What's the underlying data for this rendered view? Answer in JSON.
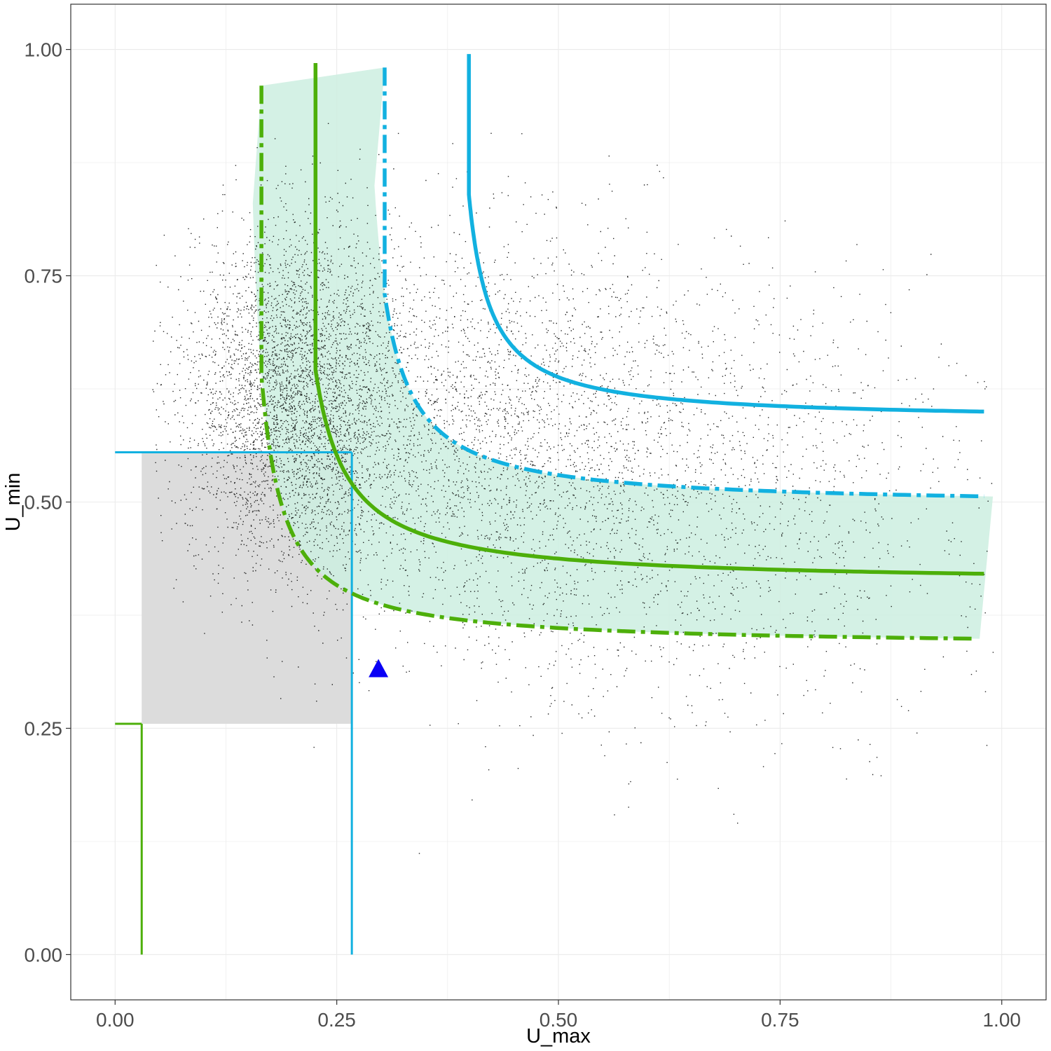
{
  "chart_data": {
    "type": "scatter",
    "title": "",
    "xlabel": "U_max",
    "ylabel": "U_min",
    "xlim": [
      -0.05,
      1.05
    ],
    "ylim": [
      -0.05,
      1.05
    ],
    "x_ticks": [
      0.0,
      0.25,
      0.5,
      0.75,
      1.0
    ],
    "y_ticks": [
      0.0,
      0.25,
      0.5,
      0.75,
      1.0
    ],
    "x_tick_labels": [
      "0.00",
      "0.25",
      "0.50",
      "0.75",
      "1.00"
    ],
    "y_tick_labels": [
      "0.00",
      "0.25",
      "0.50",
      "0.75",
      "1.00"
    ],
    "grid": true,
    "legend": "none",
    "colors": {
      "green": "#4daf0a",
      "blue": "#12b1e0",
      "band_fill": "#cdeee0",
      "region_fill": "#dcdcdc",
      "marker": "#0a00f5",
      "points": "#000000"
    },
    "scatter_points": {
      "description": "dense point cloud, approx. 8000 points",
      "count": 8000,
      "clusters": [
        {
          "x_center": 0.2,
          "y_center": 0.62,
          "x_sd": 0.06,
          "y_sd": 0.09,
          "weight": 0.45
        },
        {
          "x_center": 0.4,
          "y_center": 0.58,
          "x_sd": 0.14,
          "y_sd": 0.11,
          "weight": 0.35
        },
        {
          "x_center": 0.65,
          "y_center": 0.5,
          "x_sd": 0.17,
          "y_sd": 0.12,
          "weight": 0.2
        }
      ],
      "x_range": [
        0.04,
        0.99
      ],
      "y_range": [
        0.11,
        0.92
      ]
    },
    "series": [
      {
        "style": "solid",
        "color": "green",
        "curve": {
          "a": 0.19,
          "b": 0.41,
          "k": 0.0085,
          "x_start": 0.226,
          "x_end": 0.98,
          "y_max": 0.985
        }
      },
      {
        "style": "dashed",
        "color": "green",
        "curve": {
          "a": 0.14,
          "b": 0.34,
          "k": 0.0075,
          "x_start": 0.165,
          "x_end": 0.97,
          "y_max": 0.96
        }
      },
      {
        "style": "solid",
        "color": "blue",
        "curve": {
          "a": 0.375,
          "b": 0.59,
          "k": 0.006,
          "x_start": 0.399,
          "x_end": 0.98,
          "y_max": 0.995
        }
      },
      {
        "style": "dashed",
        "color": "blue",
        "curve": {
          "a": 0.27,
          "b": 0.495,
          "k": 0.008,
          "x_start": 0.304,
          "x_end": 0.98,
          "y_max": 0.98
        }
      }
    ],
    "band": {
      "upper": {
        "a": 0.27,
        "b": 0.495,
        "k": 0.008,
        "x_start": 0.304,
        "x_end": 0.99
      },
      "lower": {
        "a": 0.14,
        "b": 0.34,
        "k": 0.0075,
        "x_start": 0.165,
        "x_end": 0.975
      },
      "top_left": [
        0.165,
        0.96
      ],
      "top_right": [
        0.304,
        0.98
      ]
    },
    "region": {
      "x": [
        0.03,
        0.267
      ],
      "y": [
        0.255,
        0.555
      ]
    },
    "blue_lines": {
      "horizontal_y": 0.555,
      "horizontal_x": [
        0.0,
        0.267
      ],
      "vertical_x": 0.267,
      "vertical_y": [
        0.0,
        0.555
      ]
    },
    "green_lines": {
      "horizontal_y": 0.255,
      "horizontal_x": [
        0.0,
        0.03
      ],
      "vertical_x": 0.03,
      "vertical_y": [
        0.0,
        0.255
      ]
    },
    "marker": {
      "shape": "triangle",
      "x": 0.297,
      "y": 0.315
    }
  }
}
